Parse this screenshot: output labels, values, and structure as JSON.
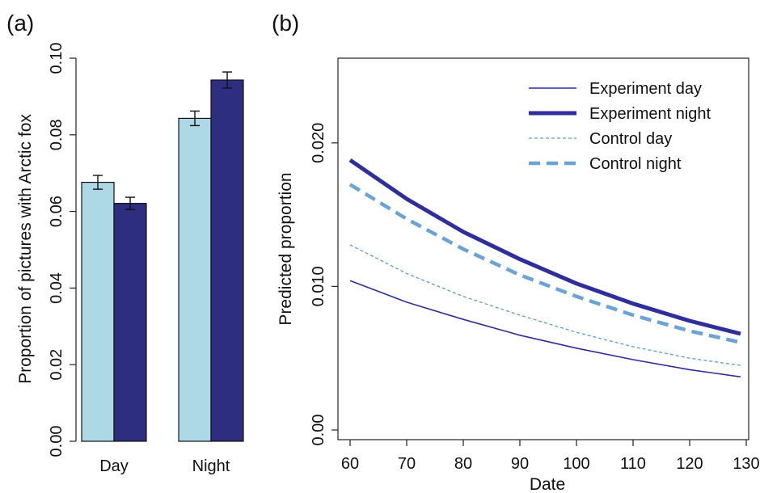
{
  "chart_data": [
    {
      "panel": "(a)",
      "type": "bar",
      "categories": [
        "Day",
        "Night"
      ],
      "series": [
        {
          "color": "#add8e6",
          "values": [
            0.0676,
            0.0843
          ],
          "error": [
            0.0018,
            0.0019
          ]
        },
        {
          "color": "#2e2e80",
          "values": [
            0.0621,
            0.0943
          ],
          "error": [
            0.0016,
            0.0021
          ]
        }
      ],
      "ylabel": "Proportion of pictures with Arctic fox",
      "ylim": [
        0,
        0.1
      ],
      "yticks": [
        "0.00",
        "0.02",
        "0.04",
        "0.06",
        "0.08",
        "0.10"
      ],
      "grid": false
    },
    {
      "panel": "(b)",
      "type": "line",
      "xlabel": "Date",
      "ylabel": "Predicted proportion",
      "xlim": [
        60,
        130
      ],
      "ylim": [
        0,
        0.025
      ],
      "xticks": [
        "60",
        "70",
        "80",
        "90",
        "100",
        "110",
        "120",
        "130"
      ],
      "yticks": [
        "0.00",
        "0.010",
        "0.020"
      ],
      "legend_position": "top-right",
      "grid": false,
      "series": [
        {
          "name": "Experiment day",
          "color": "#2e2e9e",
          "style": "solid-thin",
          "x": [
            60,
            70,
            80,
            90,
            100,
            110,
            120,
            129
          ],
          "y": [
            0.0104,
            0.0089,
            0.0077,
            0.0066,
            0.0057,
            0.0049,
            0.0042,
            0.0037
          ]
        },
        {
          "name": "Experiment night",
          "color": "#2e2e9e",
          "style": "solid-thick",
          "x": [
            60,
            70,
            80,
            90,
            100,
            110,
            120,
            129
          ],
          "y": [
            0.0188,
            0.0161,
            0.0138,
            0.0119,
            0.0102,
            0.0088,
            0.0076,
            0.0067
          ]
        },
        {
          "name": "Control day",
          "color": "#5b9bd5",
          "style": "dashed-thin",
          "x": [
            60,
            70,
            80,
            90,
            100,
            110,
            120,
            129
          ],
          "y": [
            0.0129,
            0.0109,
            0.0093,
            0.008,
            0.0068,
            0.0058,
            0.005,
            0.0045
          ]
        },
        {
          "name": "Control night",
          "color": "#6aa3d9",
          "style": "dashed-thick",
          "x": [
            60,
            70,
            80,
            90,
            100,
            110,
            120,
            129
          ],
          "y": [
            0.0171,
            0.0147,
            0.0126,
            0.0108,
            0.0093,
            0.008,
            0.0069,
            0.0061
          ]
        }
      ]
    }
  ]
}
